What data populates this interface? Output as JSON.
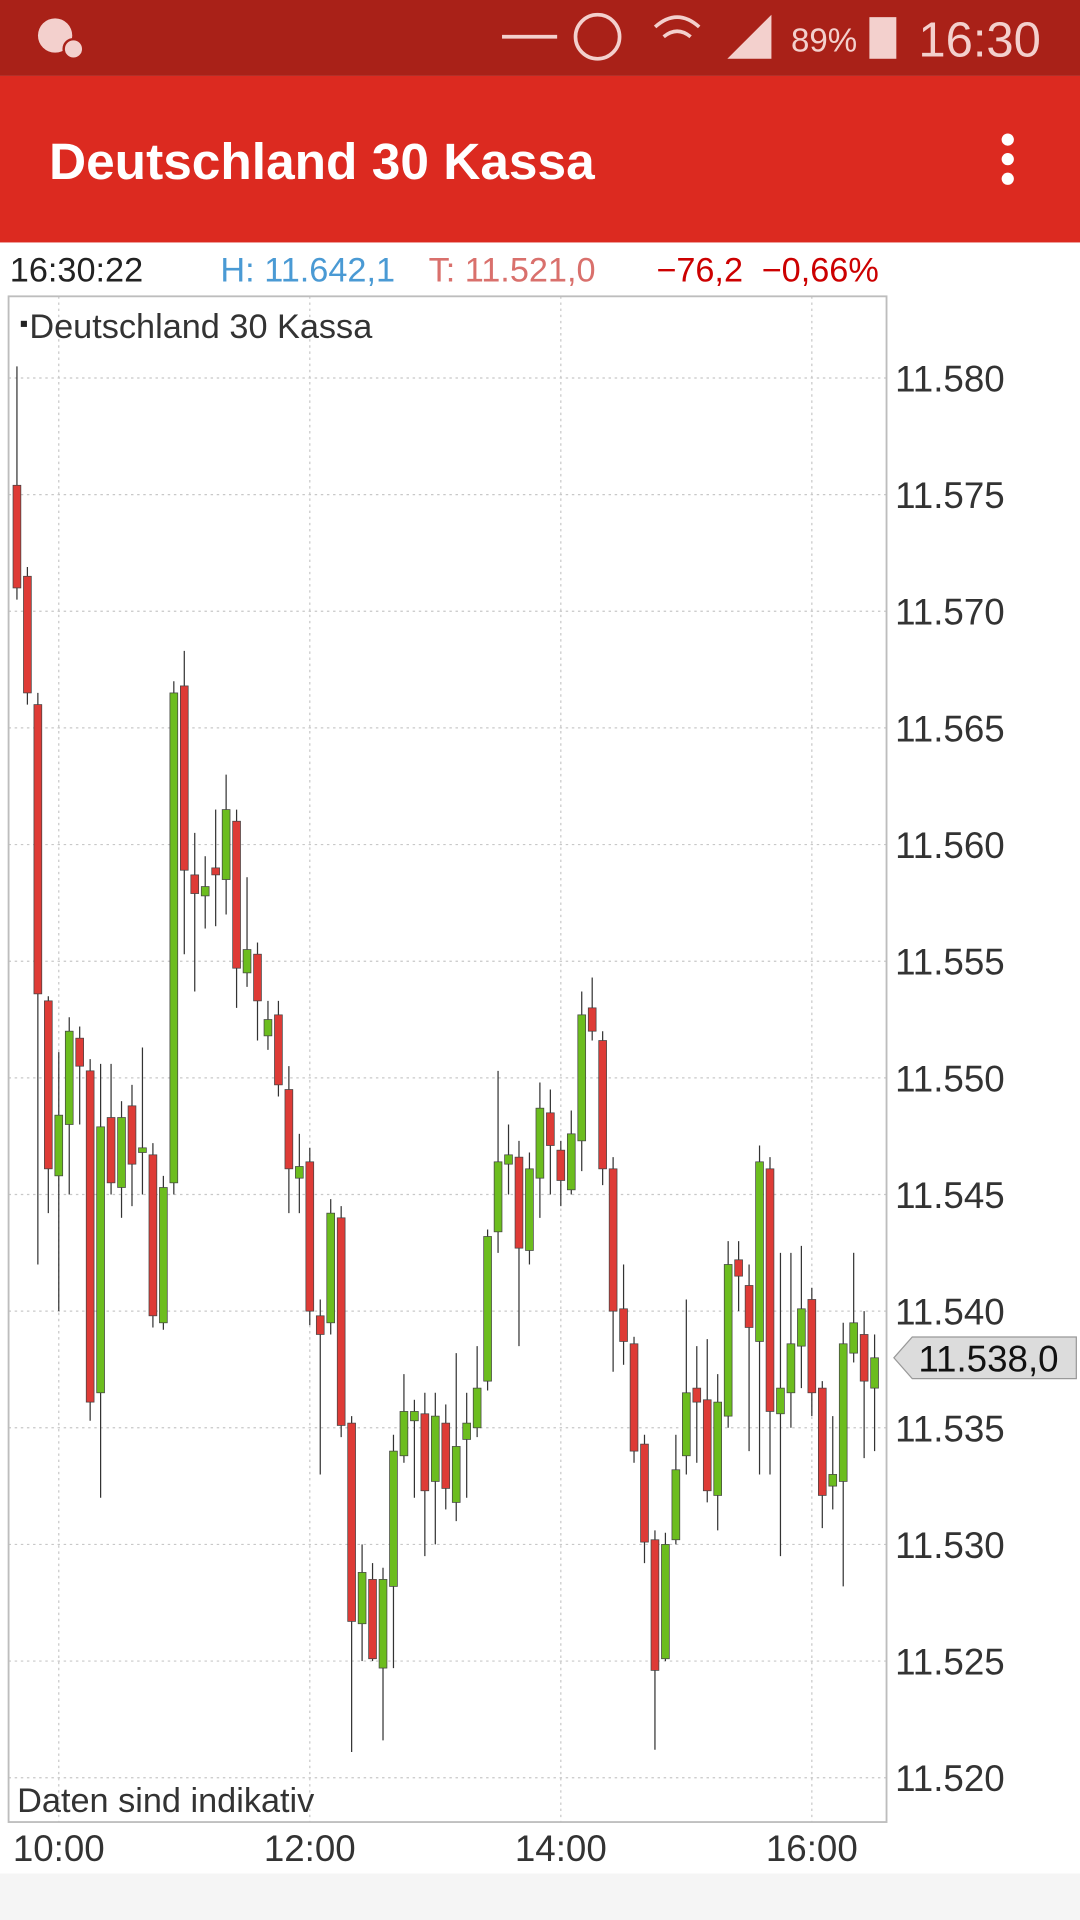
{
  "status_bar": {
    "battery": "89%",
    "clock": "16:30"
  },
  "app_bar": {
    "title": "Deutschland 30 Kassa"
  },
  "quote": {
    "time": "16:30:22",
    "high": "H: 11.642,1",
    "low": "T: 11.521,0",
    "change": "−76,2",
    "change_pct": "−0,66%"
  },
  "chart_data": {
    "type": "candlestick",
    "x": [
      "09:40",
      "09:45",
      "09:50",
      "09:55",
      "10:00",
      "10:05",
      "10:10",
      "10:15",
      "10:20",
      "10:25",
      "10:30",
      "10:35",
      "10:40",
      "10:45",
      "10:50",
      "10:55",
      "11:00",
      "11:05",
      "11:10",
      "11:15",
      "11:20",
      "11:25",
      "11:30",
      "11:35",
      "11:40",
      "11:45",
      "11:50",
      "11:55",
      "12:00",
      "12:05",
      "12:10",
      "12:15",
      "12:20",
      "12:25",
      "12:30",
      "12:35",
      "12:40",
      "12:45",
      "12:50",
      "12:55",
      "13:00",
      "13:05",
      "13:10",
      "13:15",
      "13:20",
      "13:25",
      "13:30",
      "13:35",
      "13:40",
      "13:45",
      "13:50",
      "13:55",
      "14:00",
      "14:05",
      "14:10",
      "14:15",
      "14:20",
      "14:25",
      "14:30",
      "14:35",
      "14:40",
      "14:45",
      "14:50",
      "14:55",
      "15:00",
      "15:05",
      "15:10",
      "15:15",
      "15:20",
      "15:25",
      "15:30",
      "15:35",
      "15:40",
      "15:45",
      "15:50",
      "15:55",
      "16:00",
      "16:05",
      "16:10",
      "16:15",
      "16:20",
      "16:25",
      "16:30"
    ],
    "series": [
      {
        "name": "Deutschland 30 Kassa",
        "up_color": "#6cbd1e",
        "down_color": "#de3b36",
        "open": [
          11575.4,
          11571.5,
          11566.0,
          11553.3,
          11545.8,
          11548.0,
          11551.7,
          11550.3,
          11536.5,
          11548.3,
          11545.3,
          11548.8,
          11546.8,
          11546.7,
          11539.5,
          11545.5,
          11566.8,
          11558.7,
          11557.8,
          11559.0,
          11558.5,
          11561.0,
          11554.5,
          11555.3,
          11551.8,
          11552.7,
          11549.5,
          11545.7,
          11546.4,
          11539.8,
          11539.5,
          11544.0,
          11535.2,
          11526.6,
          11528.5,
          11524.7,
          11528.2,
          11533.8,
          11535.3,
          11535.6,
          11532.7,
          11535.2,
          11531.8,
          11534.5,
          11535.0,
          11537.0,
          11543.4,
          11546.3,
          11546.6,
          11542.6,
          11545.7,
          11548.5,
          11546.9,
          11545.2,
          11547.3,
          11553.0,
          11551.6,
          11546.1,
          11540.1,
          11538.6,
          11534.3,
          11530.2,
          11525.1,
          11530.2,
          11533.8,
          11536.7,
          11536.2,
          11532.1,
          11535.5,
          11542.2,
          11541.1,
          11538.7,
          11546.1,
          11535.6,
          11536.5,
          11538.5,
          11540.5,
          11536.7,
          11532.5,
          11532.7,
          11538.2,
          11539.0,
          11536.7
        ],
        "high": [
          11580.5,
          11571.9,
          11566.5,
          11553.5,
          11551.1,
          11552.6,
          11552.2,
          11550.8,
          11550.6,
          11550.6,
          11549.0,
          11549.7,
          11551.3,
          11547.2,
          11545.8,
          11567.0,
          11568.3,
          11560.5,
          11559.5,
          11561.5,
          11563.0,
          11561.5,
          11558.6,
          11555.8,
          11553.3,
          11553.3,
          11550.5,
          11547.6,
          11547.0,
          11540.5,
          11544.8,
          11544.5,
          11535.5,
          11530.0,
          11529.2,
          11529.0,
          11534.7,
          11537.3,
          11536.2,
          11536.5,
          11536.5,
          11536.0,
          11538.2,
          11536.5,
          11538.5,
          11543.5,
          11550.3,
          11548.0,
          11547.3,
          11546.8,
          11549.8,
          11549.5,
          11547.3,
          11548.6,
          11553.7,
          11554.3,
          11552.0,
          11546.6,
          11542.0,
          11538.9,
          11534.7,
          11530.6,
          11530.5,
          11534.7,
          11540.5,
          11538.5,
          11538.8,
          11537.3,
          11543.0,
          11543.0,
          11542.0,
          11547.1,
          11546.6,
          11542.5,
          11542.5,
          11542.8,
          11541.0,
          11537.0,
          11535.5,
          11539.5,
          11542.5,
          11540.0,
          11539.0
        ],
        "low": [
          11570.5,
          11566.0,
          11542.0,
          11544.2,
          11540.0,
          11545.0,
          11548.0,
          11535.3,
          11532.0,
          11545.0,
          11544.0,
          11544.5,
          11545.0,
          11539.3,
          11539.2,
          11545.0,
          11555.3,
          11553.7,
          11556.4,
          11556.5,
          11557.0,
          11553.0,
          11553.9,
          11551.6,
          11551.2,
          11549.2,
          11544.2,
          11544.2,
          11539.4,
          11533.0,
          11539.0,
          11534.6,
          11521.1,
          11525.0,
          11525.0,
          11521.6,
          11524.7,
          11533.5,
          11532.0,
          11529.5,
          11530.0,
          11531.5,
          11531.0,
          11532.0,
          11534.6,
          11536.6,
          11542.5,
          11545.0,
          11538.5,
          11542.0,
          11544.0,
          11545.0,
          11544.5,
          11545.0,
          11546.0,
          11551.6,
          11545.4,
          11537.4,
          11537.7,
          11533.5,
          11529.2,
          11521.2,
          11525.0,
          11530.0,
          11533.0,
          11533.5,
          11531.8,
          11530.6,
          11535.0,
          11540.0,
          11534.0,
          11533.0,
          11533.0,
          11529.5,
          11535.0,
          11536.7,
          11535.5,
          11530.7,
          11531.5,
          11528.2,
          11537.8,
          11533.7,
          11534.0
        ],
        "close": [
          11571.0,
          11566.5,
          11553.6,
          11546.1,
          11548.4,
          11552.0,
          11550.5,
          11536.1,
          11547.9,
          11545.5,
          11548.3,
          11546.3,
          11547.0,
          11539.8,
          11545.3,
          11566.5,
          11558.9,
          11557.9,
          11558.2,
          11558.7,
          11561.5,
          11554.7,
          11555.5,
          11553.3,
          11552.5,
          11549.7,
          11546.1,
          11546.2,
          11540.0,
          11539.0,
          11544.2,
          11535.1,
          11526.7,
          11528.8,
          11525.1,
          11528.5,
          11534.0,
          11535.7,
          11535.7,
          11532.3,
          11535.5,
          11532.4,
          11534.2,
          11535.2,
          11536.7,
          11543.2,
          11546.4,
          11546.7,
          11542.7,
          11546.1,
          11548.7,
          11547.1,
          11545.6,
          11547.6,
          11552.7,
          11552.0,
          11546.1,
          11540.0,
          11538.7,
          11534.0,
          11530.1,
          11524.6,
          11530.0,
          11533.2,
          11536.5,
          11536.1,
          11532.3,
          11536.1,
          11542.0,
          11541.5,
          11539.3,
          11546.4,
          11535.7,
          11536.7,
          11538.6,
          11540.1,
          11536.5,
          11532.1,
          11533.0,
          11538.6,
          11539.5,
          11537.0,
          11538.0
        ]
      }
    ],
    "ylim": [
      11518.1,
      11583.5
    ],
    "yticks": [
      {
        "value": 11520,
        "label": "11.520"
      },
      {
        "value": 11525,
        "label": "11.525"
      },
      {
        "value": 11530,
        "label": "11.530"
      },
      {
        "value": 11535,
        "label": "11.535"
      },
      {
        "value": 11540,
        "label": "11.540"
      },
      {
        "value": 11545,
        "label": "11.545"
      },
      {
        "value": 11550,
        "label": "11.550"
      },
      {
        "value": 11555,
        "label": "11.555"
      },
      {
        "value": 11560,
        "label": "11.560"
      },
      {
        "value": 11565,
        "label": "11.565"
      },
      {
        "value": 11570,
        "label": "11.570"
      },
      {
        "value": 11575,
        "label": "11.575"
      },
      {
        "value": 11580,
        "label": "11.580"
      }
    ],
    "xticks": [
      "10:00",
      "12:00",
      "14:00",
      "16:00"
    ],
    "last_price": {
      "value": 11538,
      "label": "11.538,0"
    },
    "grid": true,
    "note": "Daten sind indikativ"
  }
}
